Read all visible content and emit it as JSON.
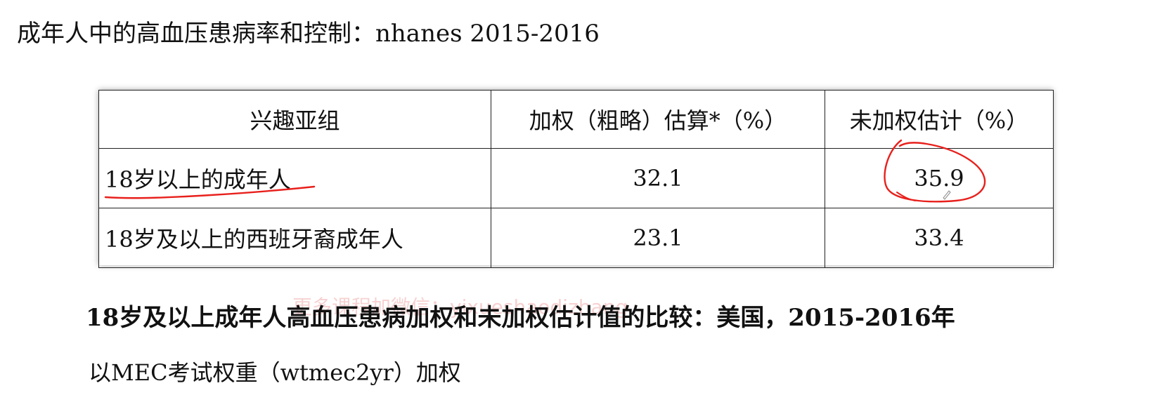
{
  "page": {
    "title": "成年人中的高血压患病率和控制：nhanes 2015-2016"
  },
  "table": {
    "headers": [
      "兴趣亚组",
      "加权（粗略）估算*（%）",
      "未加权估计（%）"
    ],
    "rows": [
      {
        "subgroup": "18岁以上的成年人",
        "weighted": "32.1",
        "unweighted": "35.9"
      },
      {
        "subgroup": "18岁及以上的西班牙裔成年人",
        "weighted": "23.1",
        "unweighted": "33.4"
      }
    ]
  },
  "caption": "18岁及以上成年人高血压患病加权和未加权估计值的比较：美国，2015-2016年",
  "weight_note": "以MEC考试权重（wtmec2yr）加权",
  "watermark": "更多课程加微信：yixueshaodizhang",
  "annotation_color": "#e8201c"
}
